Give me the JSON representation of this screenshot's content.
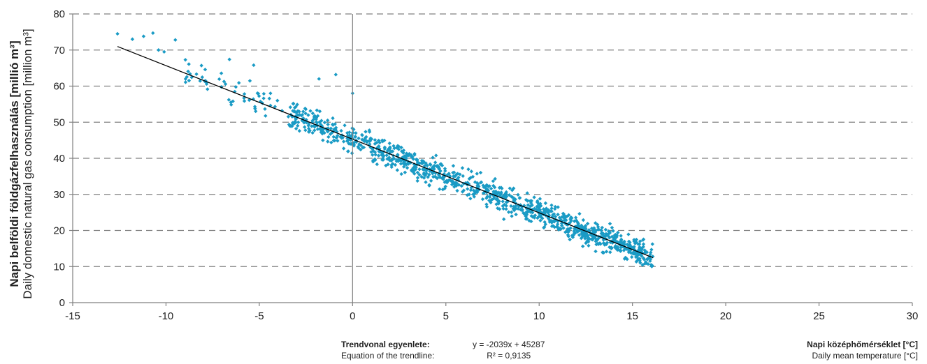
{
  "chart_data": {
    "type": "scatter",
    "ylabel_hu": "Napi belföldi földgázfelhasználás [millió m³]",
    "ylabel_en": "Daily domestic natural gas consumption [million m³]",
    "xlabel_hu": "Napi középhőmérséklet [°C]",
    "xlabel_en": "Daily mean temperature [°C]",
    "xlim": [
      -15,
      30
    ],
    "ylim": [
      0,
      80
    ],
    "xticks": [
      -15,
      -10,
      -5,
      0,
      5,
      10,
      15,
      20,
      25,
      30
    ],
    "yticks": [
      0,
      10,
      20,
      30,
      40,
      50,
      60,
      70,
      80
    ],
    "grid": "horizontal-dashed",
    "marker_color": "#1a9bc5",
    "trend_color": "#000000",
    "trend": {
      "slope": -2.039,
      "intercept": 45.287,
      "x_range": [
        -12.6,
        16.1
      ]
    },
    "points_sample": [
      [
        -12.6,
        74.5
      ],
      [
        -11.8,
        73
      ],
      [
        -11.2,
        73.8
      ],
      [
        -10.7,
        74.7
      ],
      [
        -10.4,
        70
      ],
      [
        -10.1,
        69.5
      ],
      [
        -9.5,
        72.8
      ],
      [
        -8.1,
        65.7
      ],
      [
        -7.9,
        64.6
      ],
      [
        -6.6,
        67.4
      ],
      [
        -5.3,
        65.8
      ],
      [
        -4.4,
        58
      ],
      [
        -3.1,
        54
      ],
      [
        -1.8,
        62
      ],
      [
        -0.9,
        63.2
      ],
      [
        0,
        58
      ],
      [
        0,
        47
      ],
      [
        2.2,
        40
      ],
      [
        4.8,
        38
      ],
      [
        7.5,
        30
      ],
      [
        10.1,
        25
      ],
      [
        12.5,
        19
      ],
      [
        14.2,
        15
      ],
      [
        15.8,
        12
      ],
      [
        16,
        10.5
      ]
    ],
    "equation_title_hu": "Trendvonal egyenlete:",
    "equation_title_en": "Equation of the trendline:",
    "equation": "y = -2039x + 45287",
    "r_squared": "R² = 0,9135"
  }
}
